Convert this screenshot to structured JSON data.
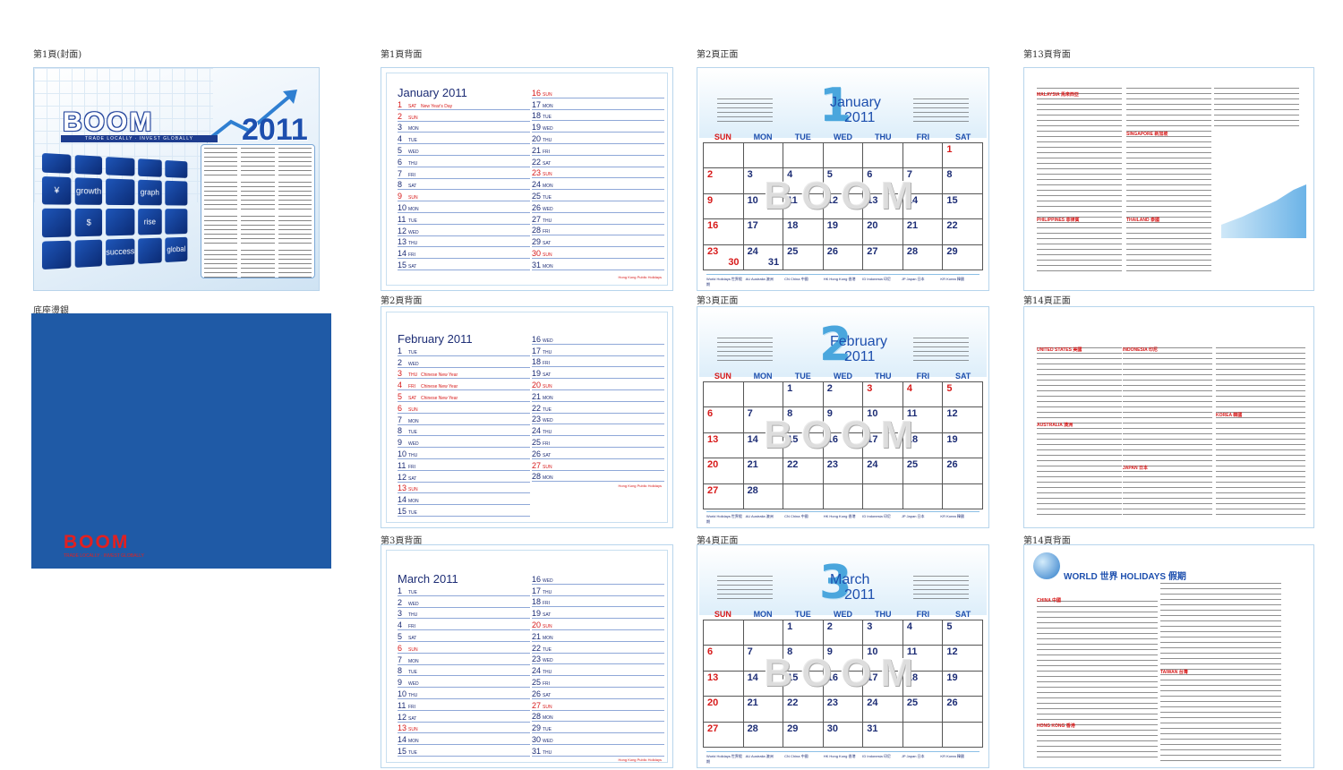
{
  "labels": {
    "cover": "第1頁(封面)",
    "base": "底座燙銀",
    "p1back": "第1頁背面",
    "p2back": "第2頁背面",
    "p3back": "第3頁背面",
    "p2front": "第2頁正面",
    "p3front": "第3頁正面",
    "p4front": "第4頁正面",
    "p13back": "第13頁背面",
    "p14front": "第14頁正面",
    "p14back": "第14頁背面"
  },
  "cover": {
    "brand": "BOOM",
    "tagline": "TRADE LOCALLY · INVEST GLOBALLY",
    "year": "2011",
    "tiles": [
      "",
      "",
      "",
      "",
      "",
      "¥",
      "growth",
      "",
      "graph",
      "",
      "",
      "$",
      "",
      "rise",
      "",
      "",
      "",
      "success",
      "",
      "global"
    ]
  },
  "base": {
    "brand": "BOOM",
    "tagline": "TRADE LOCALLY · INVEST GLOBALLY"
  },
  "notes": [
    {
      "title": "January 2011",
      "footer": "Hong Kong Public Holidays",
      "left": [
        {
          "d": "1",
          "w": "SAT",
          "n": "New Year's Day",
          "red": true
        },
        {
          "d": "2",
          "w": "SUN",
          "n": "",
          "red": true
        },
        {
          "d": "3",
          "w": "MON",
          "n": "",
          "red": false
        },
        {
          "d": "4",
          "w": "TUE",
          "n": "",
          "red": false
        },
        {
          "d": "5",
          "w": "WED",
          "n": "",
          "red": false
        },
        {
          "d": "6",
          "w": "THU",
          "n": "",
          "red": false
        },
        {
          "d": "7",
          "w": "FRI",
          "n": "",
          "red": false
        },
        {
          "d": "8",
          "w": "SAT",
          "n": "",
          "red": false
        },
        {
          "d": "9",
          "w": "SUN",
          "n": "",
          "red": true
        },
        {
          "d": "10",
          "w": "MON",
          "n": "",
          "red": false
        },
        {
          "d": "11",
          "w": "TUE",
          "n": "",
          "red": false
        },
        {
          "d": "12",
          "w": "WED",
          "n": "",
          "red": false
        },
        {
          "d": "13",
          "w": "THU",
          "n": "",
          "red": false
        },
        {
          "d": "14",
          "w": "FRI",
          "n": "",
          "red": false
        },
        {
          "d": "15",
          "w": "SAT",
          "n": "",
          "red": false
        }
      ],
      "right": [
        {
          "d": "16",
          "w": "SUN",
          "n": "",
          "red": true
        },
        {
          "d": "17",
          "w": "MON",
          "n": "",
          "red": false
        },
        {
          "d": "18",
          "w": "TUE",
          "n": "",
          "red": false
        },
        {
          "d": "19",
          "w": "WED",
          "n": "",
          "red": false
        },
        {
          "d": "20",
          "w": "THU",
          "n": "",
          "red": false
        },
        {
          "d": "21",
          "w": "FRI",
          "n": "",
          "red": false
        },
        {
          "d": "22",
          "w": "SAT",
          "n": "",
          "red": false
        },
        {
          "d": "23",
          "w": "SUN",
          "n": "",
          "red": true
        },
        {
          "d": "24",
          "w": "MON",
          "n": "",
          "red": false
        },
        {
          "d": "25",
          "w": "TUE",
          "n": "",
          "red": false
        },
        {
          "d": "26",
          "w": "WED",
          "n": "",
          "red": false
        },
        {
          "d": "27",
          "w": "THU",
          "n": "",
          "red": false
        },
        {
          "d": "28",
          "w": "FRI",
          "n": "",
          "red": false
        },
        {
          "d": "29",
          "w": "SAT",
          "n": "",
          "red": false
        },
        {
          "d": "30",
          "w": "SUN",
          "n": "",
          "red": true
        },
        {
          "d": "31",
          "w": "MON",
          "n": "",
          "red": false
        }
      ]
    },
    {
      "title": "February 2011",
      "footer": "Hong Kong Public Holidays",
      "left": [
        {
          "d": "1",
          "w": "TUE",
          "n": "",
          "red": false
        },
        {
          "d": "2",
          "w": "WED",
          "n": "",
          "red": false
        },
        {
          "d": "3",
          "w": "THU",
          "n": "Chinese New Year",
          "red": true
        },
        {
          "d": "4",
          "w": "FRI",
          "n": "Chinese New Year",
          "red": true
        },
        {
          "d": "5",
          "w": "SAT",
          "n": "Chinese New Year",
          "red": true
        },
        {
          "d": "6",
          "w": "SUN",
          "n": "",
          "red": true
        },
        {
          "d": "7",
          "w": "MON",
          "n": "",
          "red": false
        },
        {
          "d": "8",
          "w": "TUE",
          "n": "",
          "red": false
        },
        {
          "d": "9",
          "w": "WED",
          "n": "",
          "red": false
        },
        {
          "d": "10",
          "w": "THU",
          "n": "",
          "red": false
        },
        {
          "d": "11",
          "w": "FRI",
          "n": "",
          "red": false
        },
        {
          "d": "12",
          "w": "SAT",
          "n": "",
          "red": false
        },
        {
          "d": "13",
          "w": "SUN",
          "n": "",
          "red": true
        },
        {
          "d": "14",
          "w": "MON",
          "n": "",
          "red": false
        },
        {
          "d": "15",
          "w": "TUE",
          "n": "",
          "red": false
        }
      ],
      "right": [
        {
          "d": "16",
          "w": "WED",
          "n": "",
          "red": false
        },
        {
          "d": "17",
          "w": "THU",
          "n": "",
          "red": false
        },
        {
          "d": "18",
          "w": "FRI",
          "n": "",
          "red": false
        },
        {
          "d": "19",
          "w": "SAT",
          "n": "",
          "red": false
        },
        {
          "d": "20",
          "w": "SUN",
          "n": "",
          "red": true
        },
        {
          "d": "21",
          "w": "MON",
          "n": "",
          "red": false
        },
        {
          "d": "22",
          "w": "TUE",
          "n": "",
          "red": false
        },
        {
          "d": "23",
          "w": "WED",
          "n": "",
          "red": false
        },
        {
          "d": "24",
          "w": "THU",
          "n": "",
          "red": false
        },
        {
          "d": "25",
          "w": "FRI",
          "n": "",
          "red": false
        },
        {
          "d": "26",
          "w": "SAT",
          "n": "",
          "red": false
        },
        {
          "d": "27",
          "w": "SUN",
          "n": "",
          "red": true
        },
        {
          "d": "28",
          "w": "MON",
          "n": "",
          "red": false
        }
      ]
    },
    {
      "title": "March 2011",
      "footer": "Hong Kong Public Holidays",
      "left": [
        {
          "d": "1",
          "w": "TUE",
          "n": "",
          "red": false
        },
        {
          "d": "2",
          "w": "WED",
          "n": "",
          "red": false
        },
        {
          "d": "3",
          "w": "THU",
          "n": "",
          "red": false
        },
        {
          "d": "4",
          "w": "FRI",
          "n": "",
          "red": false
        },
        {
          "d": "5",
          "w": "SAT",
          "n": "",
          "red": false
        },
        {
          "d": "6",
          "w": "SUN",
          "n": "",
          "red": true
        },
        {
          "d": "7",
          "w": "MON",
          "n": "",
          "red": false
        },
        {
          "d": "8",
          "w": "TUE",
          "n": "",
          "red": false
        },
        {
          "d": "9",
          "w": "WED",
          "n": "",
          "red": false
        },
        {
          "d": "10",
          "w": "THU",
          "n": "",
          "red": false
        },
        {
          "d": "11",
          "w": "FRI",
          "n": "",
          "red": false
        },
        {
          "d": "12",
          "w": "SAT",
          "n": "",
          "red": false
        },
        {
          "d": "13",
          "w": "SUN",
          "n": "",
          "red": true
        },
        {
          "d": "14",
          "w": "MON",
          "n": "",
          "red": false
        },
        {
          "d": "15",
          "w": "TUE",
          "n": "",
          "red": false
        }
      ],
      "right": [
        {
          "d": "16",
          "w": "WED",
          "n": "",
          "red": false
        },
        {
          "d": "17",
          "w": "THU",
          "n": "",
          "red": false
        },
        {
          "d": "18",
          "w": "FRI",
          "n": "",
          "red": false
        },
        {
          "d": "19",
          "w": "SAT",
          "n": "",
          "red": false
        },
        {
          "d": "20",
          "w": "SUN",
          "n": "",
          "red": true
        },
        {
          "d": "21",
          "w": "MON",
          "n": "",
          "red": false
        },
        {
          "d": "22",
          "w": "TUE",
          "n": "",
          "red": false
        },
        {
          "d": "23",
          "w": "WED",
          "n": "",
          "red": false
        },
        {
          "d": "24",
          "w": "THU",
          "n": "",
          "red": false
        },
        {
          "d": "25",
          "w": "FRI",
          "n": "",
          "red": false
        },
        {
          "d": "26",
          "w": "SAT",
          "n": "",
          "red": false
        },
        {
          "d": "27",
          "w": "SUN",
          "n": "",
          "red": true
        },
        {
          "d": "28",
          "w": "MON",
          "n": "",
          "red": false
        },
        {
          "d": "29",
          "w": "TUE",
          "n": "",
          "red": false
        },
        {
          "d": "30",
          "w": "WED",
          "n": "",
          "red": false
        },
        {
          "d": "31",
          "w": "THU",
          "n": "",
          "red": false
        }
      ]
    }
  ],
  "dows": [
    "SUN",
    "MON",
    "TUE",
    "WED",
    "THU",
    "FRI",
    "SAT"
  ],
  "months": [
    {
      "num": "1",
      "name": "January",
      "year": "2011",
      "start": 6,
      "days": 31,
      "red": [
        1,
        2,
        9,
        16,
        23,
        30
      ]
    },
    {
      "num": "2",
      "name": "February",
      "year": "2011",
      "start": 2,
      "days": 28,
      "red": [
        3,
        4,
        5,
        6,
        13,
        20,
        27
      ]
    },
    {
      "num": "3",
      "name": "March",
      "year": "2011",
      "start": 2,
      "days": 31,
      "red": [
        6,
        13,
        20,
        27
      ]
    }
  ],
  "watermark": "BOOM",
  "legend": [
    "World Holidays 世界假期",
    "AU Australia 澳洲",
    "CN China 中國",
    "HK Hong Kong 香港",
    "ID Indonesia 印尼",
    "JP Japan 日本",
    "KR Korea 韓國"
  ],
  "holiday_pages": {
    "p13back": [
      "MALAYSIA 馬來西亞",
      "SINGAPORE 新加坡",
      "PHILIPPINES 菲律賓",
      "THAILAND 泰國"
    ],
    "p14front": [
      "UNITED STATES 美國",
      "INDONESIA 印尼",
      "AUSTRALIA 澳洲",
      "KOREA 韓國",
      "JAPAN 日本"
    ],
    "p14back": [
      "CHINA 中國",
      "TAIWAN 台灣",
      "HONG KONG 香港"
    ],
    "world_title": "WORLD 世界 HOLIDAYS 假期"
  }
}
